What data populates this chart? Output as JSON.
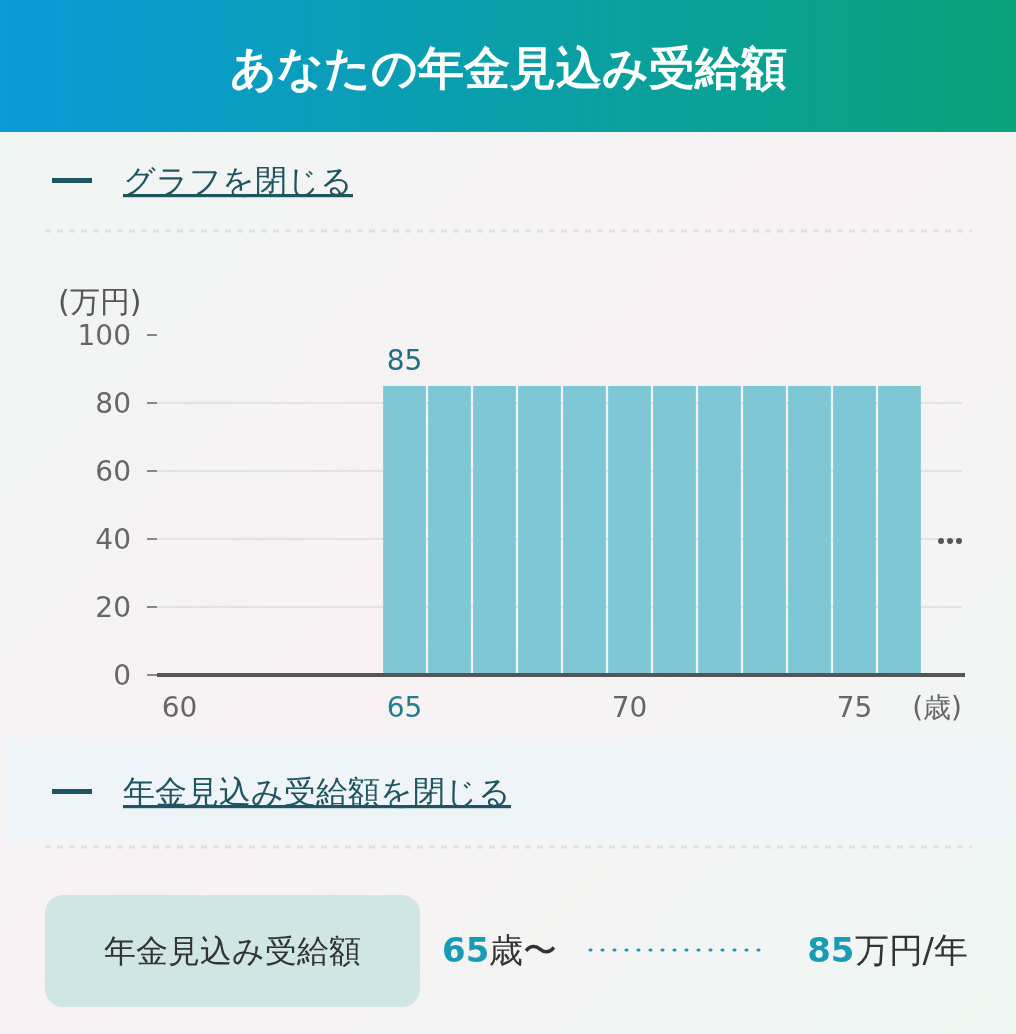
{
  "chart_data": {
    "type": "bar",
    "title": "あなたの年金見込み受給額",
    "categories": [
      "60",
      null,
      null,
      null,
      null,
      "65",
      null,
      null,
      null,
      null,
      "70",
      null,
      null,
      null,
      null,
      "75",
      null
    ],
    "values": [
      0,
      0,
      0,
      0,
      0,
      85,
      85,
      85,
      85,
      85,
      85,
      85,
      85,
      85,
      85,
      85,
      85
    ],
    "value_labels": [
      null,
      null,
      null,
      null,
      null,
      "85",
      null,
      null,
      null,
      null,
      null,
      null,
      null,
      null,
      null,
      null,
      null
    ],
    "color": "#7ec8d6",
    "ylim": [
      0,
      100
    ],
    "yticks": [
      0,
      20,
      40,
      60,
      80,
      100
    ],
    "grid": "y",
    "ylabel": "(万円)",
    "xlabel": "(歳)",
    "annotations": [
      "グラフを閉じる",
      "年金見込み受給額を閉じる",
      "年金見込み受給額",
      "65歳〜",
      "85万円/年"
    ]
  }
}
